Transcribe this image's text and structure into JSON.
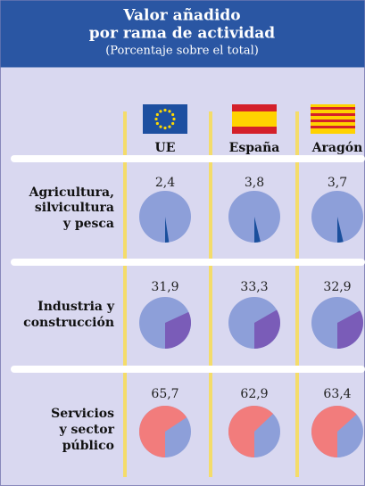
{
  "chart_data": {
    "type": "pie",
    "title": [
      "Valor añadido",
      "por rama de actividad"
    ],
    "subtitle": "(Porcentaje sobre el total)",
    "categories": [
      "UE",
      "España",
      "Aragón"
    ],
    "pie_color": "#8d9fd9",
    "series": [
      {
        "name": [
          "Agricultura,",
          "silvicultura",
          "y pesca"
        ],
        "color": "#1a4f9c",
        "values": [
          2.4,
          3.8,
          3.7
        ],
        "value_labels": [
          "2,4",
          "3,8",
          "3,7"
        ]
      },
      {
        "name": [
          "Industria y",
          "construcción"
        ],
        "color": "#7a5cb8",
        "values": [
          31.9,
          33.3,
          32.9
        ],
        "value_labels": [
          "31,9",
          "33,3",
          "32,9"
        ]
      },
      {
        "name": [
          "Servicios",
          "y sector",
          "público"
        ],
        "color": "#f27c7c",
        "values": [
          65.7,
          62.9,
          63.4
        ],
        "value_labels": [
          "65,7",
          "62,9",
          "63,4"
        ]
      }
    ]
  }
}
